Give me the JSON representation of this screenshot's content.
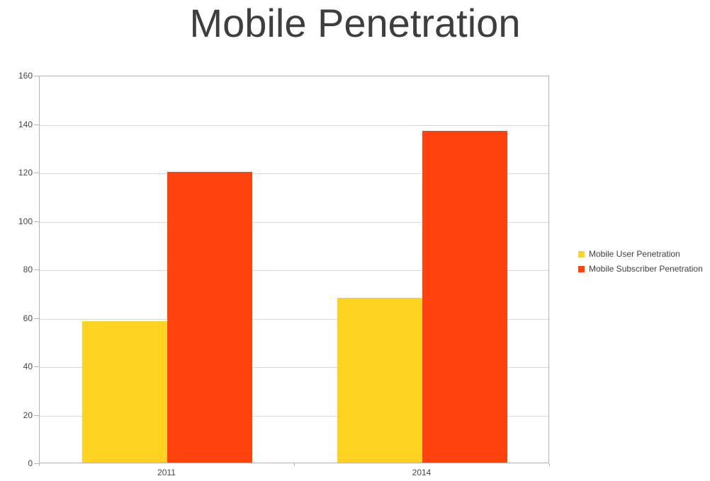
{
  "title": "Mobile Penetration",
  "colors": {
    "series_user": "#FFD320",
    "series_subscriber": "#FF420E",
    "gridline": "#d9d9d9",
    "axis": "#b3b3b3",
    "axis_text": "#464646",
    "title_text": "#3e3e3e",
    "background": "#ffffff"
  },
  "chart_data": {
    "type": "bar",
    "title": "Mobile Penetration",
    "categories": [
      "2011",
      "2014"
    ],
    "series": [
      {
        "name": "Mobile User Penetration",
        "color": "#FFD320",
        "values": [
          58.5,
          68
        ]
      },
      {
        "name": "Mobile Subscriber Penetration",
        "color": "#FF420E",
        "values": [
          120,
          137
        ]
      }
    ],
    "xlabel": "",
    "ylabel": "",
    "ylim": [
      0,
      160
    ],
    "yticks": [
      0,
      20,
      40,
      60,
      80,
      100,
      120,
      140,
      160
    ],
    "grid": true,
    "legend_position": "right"
  }
}
